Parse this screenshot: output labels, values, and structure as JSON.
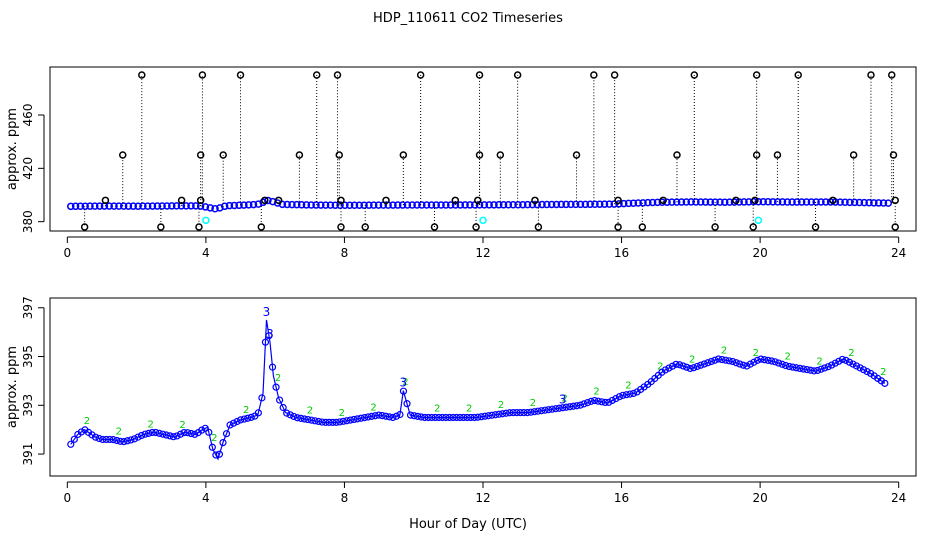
{
  "figure": {
    "title": "HDP_110611  CO2 Timeseries",
    "xlabel": "Hour of Day (UTC)"
  },
  "colors": {
    "axis": "#000000",
    "main_series": "#0000ff",
    "flagged_markers": "#000000",
    "cyan_markers": "#00ffff",
    "alt_series": "#00cc00"
  },
  "chart_data": [
    {
      "type": "scatter",
      "panel": "top",
      "title": "",
      "xlabel": "",
      "ylabel": "approx. ppm",
      "xlim": [
        -0.5,
        24.5
      ],
      "ylim": [
        373,
        496
      ],
      "x_ticks": [
        0,
        4,
        8,
        12,
        16,
        20,
        24
      ],
      "x_tick_labels": [
        "0",
        "4",
        "8",
        "12",
        "16",
        "20",
        "24"
      ],
      "y_ticks": [
        380,
        420,
        460
      ],
      "y_tick_labels": [
        "380",
        "420",
        "460"
      ],
      "series_note": "blue continuous CO2 trace with black flagged outliers drawn with dotted drop lines",
      "baseline": {
        "x": [
          0.1,
          1,
          2,
          3,
          3.8,
          4.0,
          4.3,
          4.6,
          5.0,
          5.5,
          5.8,
          6.2,
          7,
          8,
          9,
          10,
          11,
          12,
          13,
          14,
          15,
          15.8,
          16,
          17,
          18,
          19,
          20,
          21,
          22,
          23,
          23.7
        ],
        "y": [
          391.5,
          391.7,
          391.6,
          391.8,
          391.9,
          391.0,
          389.5,
          392.0,
          392.3,
          393.0,
          396.0,
          393.0,
          392.5,
          392.3,
          392.4,
          392.5,
          392.5,
          392.6,
          392.7,
          392.9,
          393.0,
          393.2,
          393.5,
          394.5,
          394.8,
          394.6,
          395.0,
          394.7,
          394.8,
          394.3,
          393.9
        ]
      },
      "outliers_high": [
        2.15,
        3.9,
        5.0,
        7.2,
        7.8,
        10.2,
        11.9,
        13.0,
        15.2,
        15.8,
        18.1,
        19.9,
        21.1,
        23.2,
        23.8
      ],
      "outliers_430": [
        1.6,
        3.85,
        4.5,
        6.7,
        7.85,
        9.7,
        11.9,
        12.5,
        14.7,
        17.6,
        19.9,
        20.5,
        22.7,
        23.85
      ],
      "outliers_396": [
        1.1,
        3.3,
        3.85,
        5.7,
        6.1,
        7.9,
        9.2,
        11.2,
        11.85,
        13.5,
        15.9,
        17.2,
        19.3,
        19.85,
        22.1,
        23.9
      ],
      "outliers_376": [
        0.5,
        2.7,
        3.8,
        5.6,
        7.9,
        8.6,
        10.6,
        11.8,
        13.6,
        15.9,
        16.6,
        18.7,
        19.8,
        21.6,
        23.9
      ],
      "cyan_points": [
        [
          4.0,
          381
        ],
        [
          12.0,
          381
        ],
        [
          19.95,
          381
        ]
      ],
      "high_value": 490,
      "mid_value": 430,
      "low_value": 396,
      "bottom_value": 376
    },
    {
      "type": "line",
      "panel": "bottom",
      "title": "",
      "xlabel": "Hour of Day (UTC)",
      "ylabel": "approx. ppm",
      "xlim": [
        -0.5,
        24.5
      ],
      "ylim": [
        390.1,
        397.4
      ],
      "x_ticks": [
        0,
        4,
        8,
        12,
        16,
        20,
        24
      ],
      "x_tick_labels": [
        "0",
        "4",
        "8",
        "12",
        "16",
        "20",
        "24"
      ],
      "y_ticks": [
        391,
        393,
        395,
        397
      ],
      "y_tick_labels": [
        "391",
        "393",
        "395",
        "397"
      ],
      "marker_labels": [
        "3",
        "2"
      ],
      "series": [
        {
          "name": "CO2 (blue circles, label 3)",
          "x": [
            0.1,
            0.3,
            0.5,
            0.8,
            1.0,
            1.3,
            1.6,
            1.9,
            2.2,
            2.5,
            2.8,
            3.1,
            3.4,
            3.7,
            3.9,
            4.05,
            4.2,
            4.35,
            4.5,
            4.7,
            5.0,
            5.3,
            5.5,
            5.65,
            5.75,
            5.85,
            5.95,
            6.1,
            6.3,
            6.6,
            7.0,
            7.4,
            7.8,
            8.2,
            8.6,
            9.0,
            9.4,
            9.6,
            9.7,
            9.9,
            10.3,
            10.8,
            11.3,
            11.8,
            12.3,
            12.8,
            13.3,
            13.8,
            14.3,
            14.8,
            15.2,
            15.6,
            16.0,
            16.4,
            16.8,
            17.2,
            17.6,
            18.0,
            18.4,
            18.8,
            19.2,
            19.6,
            20.0,
            20.4,
            20.8,
            21.2,
            21.6,
            22.0,
            22.4,
            22.8,
            23.2,
            23.6
          ],
          "y": [
            391.4,
            391.8,
            392.0,
            391.7,
            391.6,
            391.6,
            391.5,
            391.6,
            391.8,
            391.9,
            391.8,
            391.7,
            391.9,
            391.8,
            392.0,
            392.1,
            391.2,
            390.8,
            391.5,
            392.2,
            392.4,
            392.5,
            392.6,
            393.5,
            396.5,
            395.6,
            394.2,
            393.3,
            392.7,
            392.5,
            392.4,
            392.3,
            392.3,
            392.4,
            392.5,
            392.6,
            392.5,
            392.6,
            393.6,
            392.6,
            392.5,
            392.5,
            392.5,
            392.5,
            392.6,
            392.7,
            392.7,
            392.8,
            392.9,
            393.0,
            393.2,
            393.1,
            393.4,
            393.5,
            393.9,
            394.4,
            394.7,
            394.5,
            394.7,
            394.9,
            394.8,
            394.6,
            394.9,
            394.8,
            394.6,
            394.5,
            394.4,
            394.6,
            394.9,
            394.6,
            394.3,
            393.9
          ]
        }
      ]
    }
  ]
}
